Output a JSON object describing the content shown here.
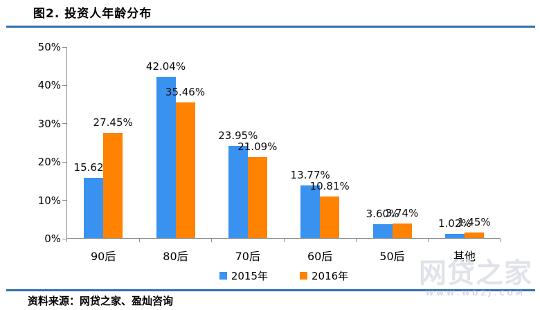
{
  "header": {
    "title": "图2. 投资人年龄分布"
  },
  "footer": {
    "source": "资料来源：网贷之家、盈灿咨询"
  },
  "watermark": {
    "brand": "网贷之家",
    "url": "WWW.WDZJ.COM"
  },
  "colors": {
    "series_2015": "#3A92F0",
    "series_2016": "#FF8200",
    "rule_blue": "#2E6DB4",
    "axis_gray": "#8a8a8a"
  },
  "chart_data": {
    "type": "bar",
    "title": "图2. 投资人年龄分布",
    "categories": [
      "90后",
      "80后",
      "70后",
      "60后",
      "50后",
      "其他"
    ],
    "series": [
      {
        "name": "2015年",
        "color": "#3A92F0",
        "values": [
          15.62,
          42.04,
          23.95,
          13.77,
          3.6,
          1.02
        ]
      },
      {
        "name": "2016年",
        "color": "#FF8200",
        "values": [
          27.45,
          35.46,
          21.09,
          10.81,
          3.74,
          1.45
        ]
      }
    ],
    "value_labels": [
      [
        "15.62%",
        "42.04%",
        "23.95%",
        "13.77%",
        "3.60%",
        "1.02%"
      ],
      [
        "27.45%",
        "35.46%",
        "21.09%",
        "10.81%",
        "3.74%",
        "1.45%"
      ]
    ],
    "xlabel": "",
    "ylabel": "",
    "ylim": [
      0,
      50
    ],
    "yticks": [
      "0%",
      "10%",
      "20%",
      "30%",
      "40%",
      "50%"
    ],
    "grid": false,
    "legend_position": "bottom"
  }
}
